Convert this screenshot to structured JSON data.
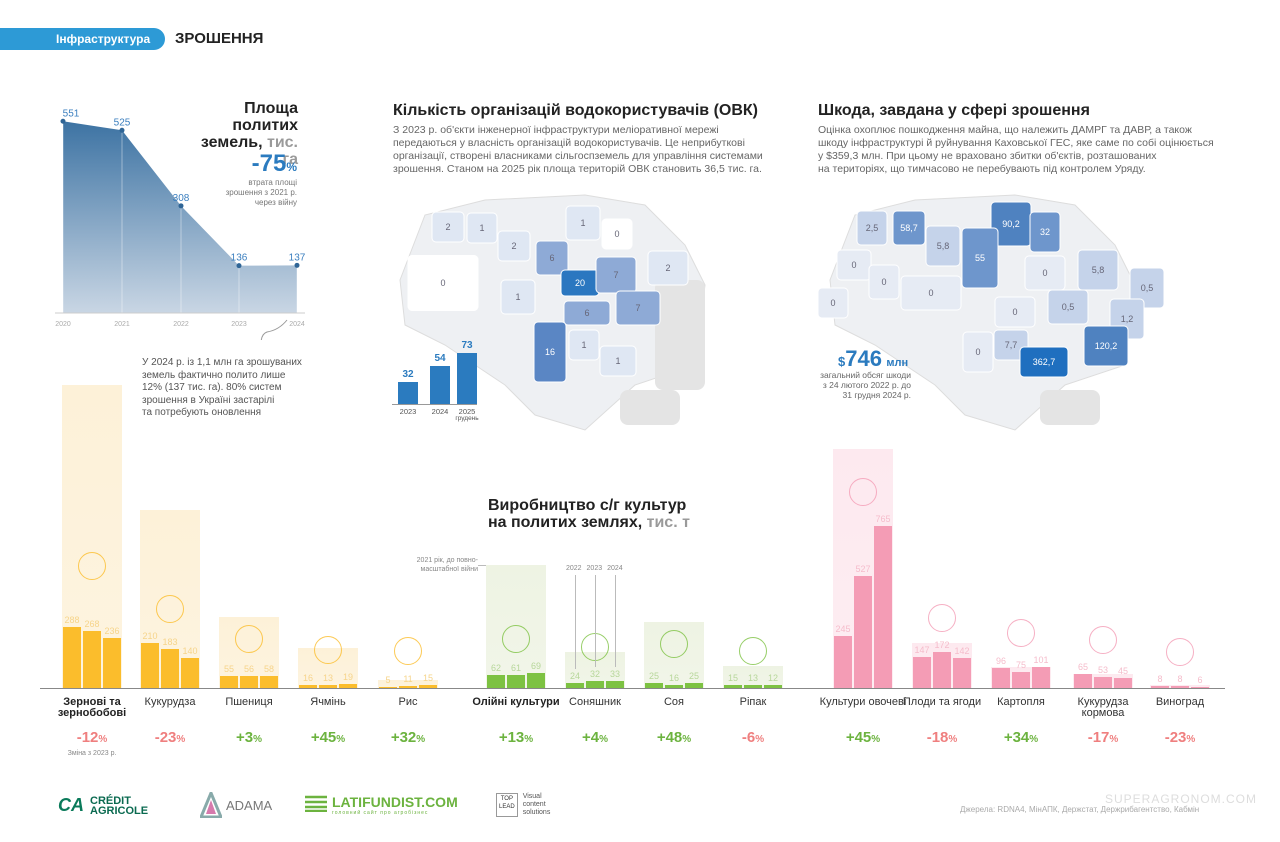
{
  "header": {
    "tag": "Інфраструктура",
    "section": "ЗРОШЕННЯ"
  },
  "area": {
    "title1": "Площа политих",
    "title2": "земель,",
    "unit": "тис. га",
    "loss_value": "-75",
    "loss_pct": "%",
    "loss_desc": [
      "втрата площі",
      "зрошення з 2021 р.",
      "через війну"
    ],
    "note": [
      "У 2024 р. із 1,1 млн га зрошуваних",
      "земель фактично полито лише",
      "12% (137 тис. га). 80% систем",
      "зрошення в Україні застарілі",
      "та потребують оновлення"
    ]
  },
  "ovk": {
    "title": "Кількість організацій водокористувачів (ОВК)",
    "text": [
      "З 2023 р. об'єкти інженерної інфраструктури меліоративної мережі",
      "передаються у власність організацій водокористувачів. Це неприбуткові",
      "організації, створені власниками сільгоспземель для управління системами",
      "зрошення. Станом на 2025 рік площа територій ОВК становить 36,5 тис. га."
    ],
    "regions": [
      "2",
      "1",
      "2",
      "0",
      "1",
      "0",
      "6",
      "20",
      "7",
      "2",
      "1",
      "6",
      "7",
      "16",
      "1",
      "1"
    ],
    "subnote": "грудень"
  },
  "damage": {
    "title": "Шкода, завдана у сфері зрошення",
    "text": [
      "Оцінка охоплює пошкодження майна, що належить ДАМРГ та ДАВР, а також",
      "шкоду інфраструктурі й руйнування Каховської ГЕС, яке саме по собі оцінюється",
      "у $359,3 млн. При цьому не враховано збитки об'єктів, розташованих",
      "на територіях, що тимчасово не перебувають під контролем Уряду."
    ],
    "total_currency": "$",
    "total_value": "746",
    "total_unit": "млн",
    "total_desc": [
      "загальний обсяг шкоди",
      "з 24 лютого 2022 р. до",
      "31 грудня 2024 р."
    ],
    "regions": [
      "2,5",
      "58,7",
      "5,8",
      "90,2",
      "32",
      "0",
      "0",
      "55",
      "0",
      "0",
      "5,8",
      "0,5",
      "0",
      "0",
      "0,5",
      "1,2",
      "0",
      "7,7",
      "120,2",
      "362,7"
    ]
  },
  "crops": {
    "title1": "Виробництво с/г культур",
    "title2": "на политих землях,",
    "unit": "тис. т",
    "legend_2021": [
      "2021 рік, до повно-",
      "масштабної війни"
    ],
    "legend_years": [
      "2022",
      "2023",
      "2024"
    ],
    "change_note": "Зміна з 2023 р."
  },
  "colors": {
    "yellow": "#fbbd2c",
    "green": "#7dc242",
    "pink": "#f49cb5",
    "blue": "#2b7bbf",
    "neg": "#ef7f7f",
    "pos": "#6cb33f"
  },
  "footer": {
    "logos": [
      "CRÉDIT",
      "AGRICOLE",
      "ADAMA",
      "LATIFUNDIST.COM",
      "головний сайт про агробізнес",
      "TOP",
      "LEAD",
      "Visual",
      "content",
      "solutions"
    ],
    "source": "Джерела: RDNA4, МінАПК, Держстат, Держрибагентство, Кабмін",
    "watermark": "SUPERAGRONOM.COM"
  },
  "chart_data": [
    {
      "type": "area",
      "title": "Площа политих земель, тис. га",
      "x": [
        "2020",
        "2021",
        "2022",
        "2023",
        "2024"
      ],
      "values": [
        551,
        525,
        308,
        136,
        137
      ]
    },
    {
      "type": "bar",
      "title": "Кількість ОВК",
      "categories": [
        "2023",
        "2024",
        "2025"
      ],
      "values": [
        32,
        54,
        73
      ]
    },
    {
      "type": "bar",
      "title": "Виробництво с/г культур на политих землях, тис. т",
      "series_names": [
        "2021",
        "2022",
        "2023",
        "2024"
      ],
      "groups": [
        {
          "label": "Зернові та зернобобові",
          "bold": true,
          "color": "yellow",
          "v2021": 1430,
          "values": [
            288,
            268,
            236
          ],
          "change": "-12"
        },
        {
          "label": "Кукурудза",
          "color": "yellow",
          "v2021": 840,
          "values": [
            210,
            183,
            140
          ],
          "change": "-23"
        },
        {
          "label": "Пшениця",
          "color": "yellow",
          "v2021": 335,
          "values": [
            55,
            56,
            58
          ],
          "change": "+3"
        },
        {
          "label": "Ячмінь",
          "color": "yellow",
          "v2021": 190,
          "values": [
            16,
            13,
            19
          ],
          "change": "+45"
        },
        {
          "label": "Рис",
          "color": "yellow",
          "v2021": 38,
          "values": [
            5,
            11,
            15
          ],
          "change": "+32"
        },
        {
          "label": "Олійні культури",
          "bold": true,
          "color": "green",
          "v2021": 580,
          "values": [
            62,
            61,
            69
          ],
          "change": "+13"
        },
        {
          "label": "Соняшник",
          "color": "green",
          "v2021": 170,
          "values": [
            24,
            32,
            33
          ],
          "change": "+4"
        },
        {
          "label": "Соя",
          "color": "green",
          "v2021": 311,
          "values": [
            25,
            16,
            25
          ],
          "change": "+48"
        },
        {
          "label": "Ріпак",
          "color": "green",
          "v2021": 104,
          "values": [
            15,
            13,
            12
          ],
          "change": "-6"
        },
        {
          "label": "Культури овочеві",
          "color": "pink",
          "v2021": 1127,
          "values": [
            245,
            527,
            765
          ],
          "change": "+45"
        },
        {
          "label": "Плоди та ягоди",
          "color": "pink",
          "v2021": 212,
          "values": [
            147,
            172,
            142
          ],
          "change": "-18"
        },
        {
          "label": "Картопля",
          "color": "pink",
          "v2021": 100,
          "values": [
            96,
            75,
            101
          ],
          "change": "+34"
        },
        {
          "label": "Кукурудза кормова",
          "color": "pink",
          "v2021": 66,
          "values": [
            65,
            53,
            45
          ],
          "change": "-17"
        },
        {
          "label": "Виноград",
          "color": "pink",
          "v2021": 14,
          "values": [
            8,
            8,
            6
          ],
          "change": "-23"
        }
      ]
    }
  ]
}
